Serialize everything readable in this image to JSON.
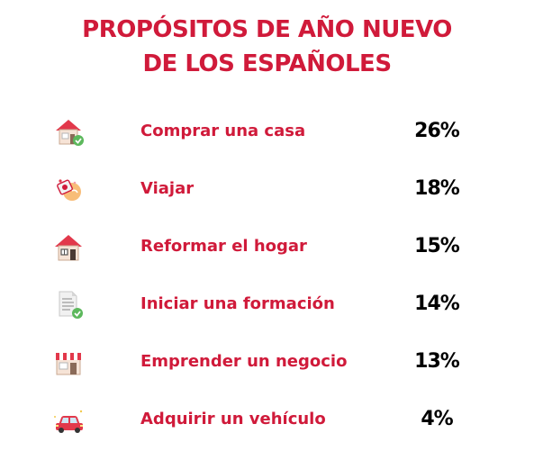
{
  "chart_data": {
    "type": "table",
    "title_lines": [
      "PROPÓSITOS DE AÑO NUEVO",
      "DE LOS ESPAÑOLES"
    ],
    "unit": "%",
    "rows": [
      {
        "label": "Comprar una casa",
        "value": 26,
        "display": "26%",
        "icon": "house-check-icon"
      },
      {
        "label": "Viajar",
        "value": 18,
        "display": "18%",
        "icon": "travel-icon"
      },
      {
        "label": "Reformar el hogar",
        "value": 15,
        "display": "15%",
        "icon": "house-icon"
      },
      {
        "label": "Iniciar una formación",
        "value": 14,
        "display": "14%",
        "icon": "document-check-icon"
      },
      {
        "label": "Emprender un negocio",
        "value": 13,
        "display": "13%",
        "icon": "store-icon"
      },
      {
        "label": "Adquirir un vehículo",
        "value": 4,
        "display": "4%",
        "icon": "car-icon"
      }
    ]
  },
  "colors": {
    "accent": "#d01a3a",
    "value_text": "#000000",
    "check_green": "#5cb85c"
  }
}
